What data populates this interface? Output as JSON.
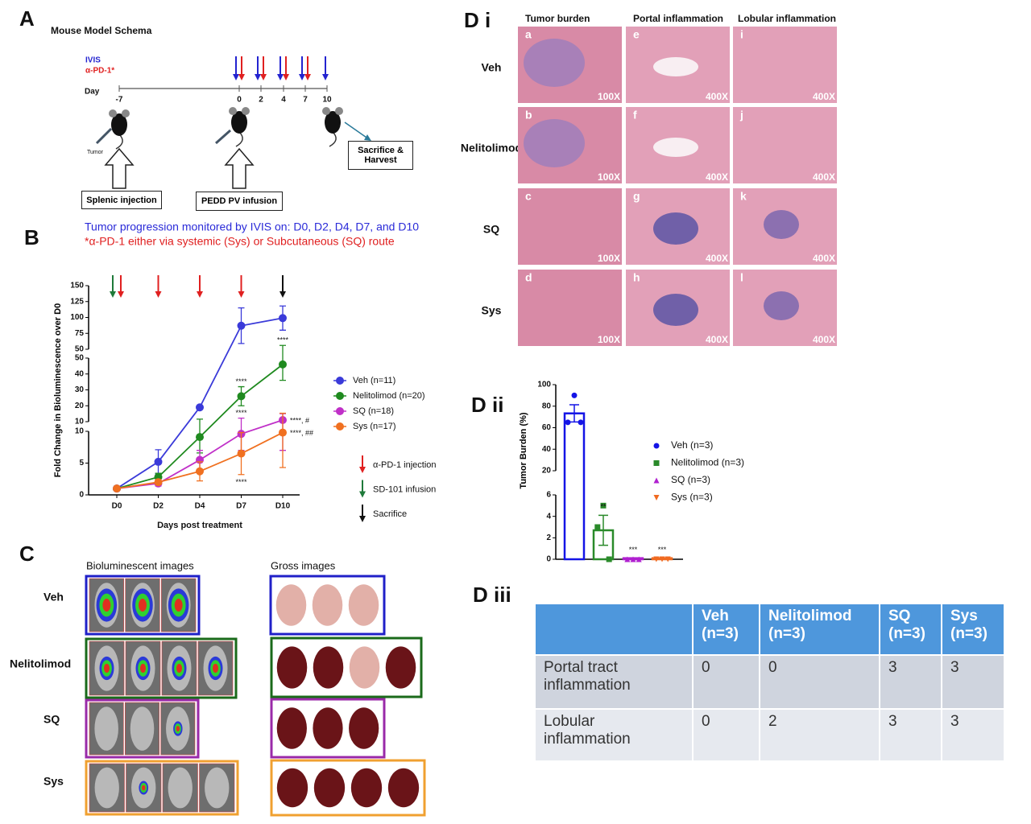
{
  "panel_a": {
    "label": "A",
    "title": "Mouse Model Schema",
    "legend": [
      "IVIS",
      "α-PD-1*"
    ],
    "day_label": "Day",
    "days": [
      "-7",
      "0",
      "2",
      "4",
      "7",
      "10"
    ],
    "tumor": "Tumor",
    "steps": [
      "Splenic injection",
      "PEDD PV infusion",
      "Sacrifice & Harvest"
    ],
    "notes": [
      "Tumor progression monitored by IVIS on: D0, D2, D4, D7, and D10",
      "*α-PD-1 either via systemic (Sys) or Subcutaneous (SQ) route"
    ]
  },
  "chart_data": [
    {
      "panel": "B",
      "type": "line",
      "y_label": "Fold Change in Bioluminescence over D0",
      "x_label": "Days post treatment",
      "categories": [
        "D0",
        "D2",
        "D4",
        "D7",
        "D10"
      ],
      "y_segments": [
        {
          "ylim": [
            0,
            10
          ],
          "yticks": [
            0,
            5,
            10
          ]
        },
        {
          "ylim": [
            10,
            50
          ],
          "yticks": [
            10,
            20,
            30,
            40,
            50
          ]
        },
        {
          "ylim": [
            50,
            150
          ],
          "yticks": [
            50,
            75,
            100,
            125,
            150
          ]
        }
      ],
      "series": [
        {
          "name": "Veh (n=11)",
          "color": "#3a3ad9",
          "values": [
            1,
            5.2,
            19,
            87,
            99
          ],
          "errors": [
            0.1,
            1.9,
            1,
            28,
            19
          ]
        },
        {
          "name": "Nelitolimod (n=20)",
          "color": "#1f8a1f",
          "values": [
            1,
            2.8,
            9.1,
            26,
            46
          ],
          "errors": [
            0.1,
            0.6,
            2.5,
            6,
            10
          ],
          "annotations": [
            null,
            null,
            null,
            "****",
            "****"
          ]
        },
        {
          "name": "SQ (n=18)",
          "color": "#c030c8",
          "values": [
            1,
            1.8,
            5.5,
            9.6,
            11
          ],
          "errors": [
            0.1,
            0.4,
            1.5,
            2.6,
            4
          ],
          "annotations": [
            null,
            null,
            null,
            "****",
            "****, #"
          ]
        },
        {
          "name": "Sys (n=17)",
          "color": "#f07020",
          "values": [
            1,
            2,
            3.7,
            6.5,
            9.8
          ],
          "errors": [
            0.1,
            0.4,
            1.5,
            3.3,
            5.5
          ],
          "annotations": [
            null,
            null,
            null,
            "****",
            "****, ##"
          ]
        }
      ],
      "arrow_legend": [
        {
          "name": "α-PD-1 injection",
          "color": "#e02020"
        },
        {
          "name": "SD-101 infusion",
          "color": "#1f7a3a"
        },
        {
          "name": "Sacrifice",
          "color": "#111111"
        }
      ],
      "arrows": [
        [
          "SD-101 infusion",
          "α-PD-1 injection"
        ],
        [
          "α-PD-1 injection"
        ],
        [
          "α-PD-1 injection"
        ],
        [
          "α-PD-1 injection"
        ],
        [
          "Sacrifice"
        ]
      ]
    },
    {
      "panel": "D ii",
      "type": "bar",
      "y_label": "Tumor Burden (%)",
      "y_segments": [
        {
          "ylim": [
            0,
            6
          ],
          "yticks": [
            0,
            2,
            4,
            6
          ]
        },
        {
          "ylim": [
            20,
            100
          ],
          "yticks": [
            20,
            40,
            60,
            80,
            100
          ]
        }
      ],
      "groups": [
        {
          "name": "Veh (n=3)",
          "color": "#1414e6",
          "marker": "circle",
          "value": 73.3,
          "error": 8,
          "points": [
            90,
            65,
            65
          ],
          "annotation": null
        },
        {
          "name": "Nelitolimod (n=3)",
          "color": "#2a8a2a",
          "marker": "square",
          "value": 2.7,
          "error": 1.4,
          "points": [
            5,
            3,
            0
          ],
          "annotation": "**"
        },
        {
          "name": "SQ (n=3)",
          "color": "#b020d0",
          "marker": "triangle-up",
          "value": 0.1,
          "error": 0,
          "points": [
            0,
            0,
            0
          ],
          "annotation": "***"
        },
        {
          "name": "Sys (n=3)",
          "color": "#f06a20",
          "marker": "triangle-down",
          "value": 0.1,
          "error": 0,
          "points": [
            0,
            0,
            0
          ],
          "annotation": "***"
        }
      ]
    }
  ],
  "panel_c": {
    "label": "C",
    "columns": [
      "Bioluminescent images",
      "Gross images"
    ],
    "rows": [
      "Veh",
      "Nelitolimod",
      "SQ",
      "Sys"
    ]
  },
  "panel_d_i": {
    "label": "D i",
    "columns": [
      "Tumor burden",
      "Portal inflammation",
      "Lobular inflammation"
    ],
    "rows": [
      {
        "label": "Veh",
        "tiles": [
          {
            "letter": "a",
            "mag": "100X"
          },
          {
            "letter": "e",
            "mag": "400X"
          },
          {
            "letter": "i",
            "mag": "400X"
          }
        ]
      },
      {
        "label": "Nelitolimod",
        "tiles": [
          {
            "letter": "b",
            "mag": "100X"
          },
          {
            "letter": "f",
            "mag": "400X"
          },
          {
            "letter": "j",
            "mag": "400X"
          }
        ]
      },
      {
        "label": "SQ",
        "tiles": [
          {
            "letter": "c",
            "mag": "100X"
          },
          {
            "letter": "g",
            "mag": "400X"
          },
          {
            "letter": "k",
            "mag": "400X"
          }
        ]
      },
      {
        "label": "Sys",
        "tiles": [
          {
            "letter": "d",
            "mag": "100X"
          },
          {
            "letter": "h",
            "mag": "400X"
          },
          {
            "letter": "l",
            "mag": "400X"
          }
        ]
      }
    ]
  },
  "panel_d_iii": {
    "label": "D iii",
    "columns": [
      "Veh (n=3)",
      "Nelitolimod (n=3)",
      "SQ (n=3)",
      "Sys (n=3)"
    ],
    "rows": [
      {
        "label": "Portal tract inflammation",
        "values": [
          0,
          0,
          3,
          3
        ]
      },
      {
        "label": "Lobular inflammation",
        "values": [
          0,
          2,
          3,
          3
        ]
      }
    ]
  }
}
